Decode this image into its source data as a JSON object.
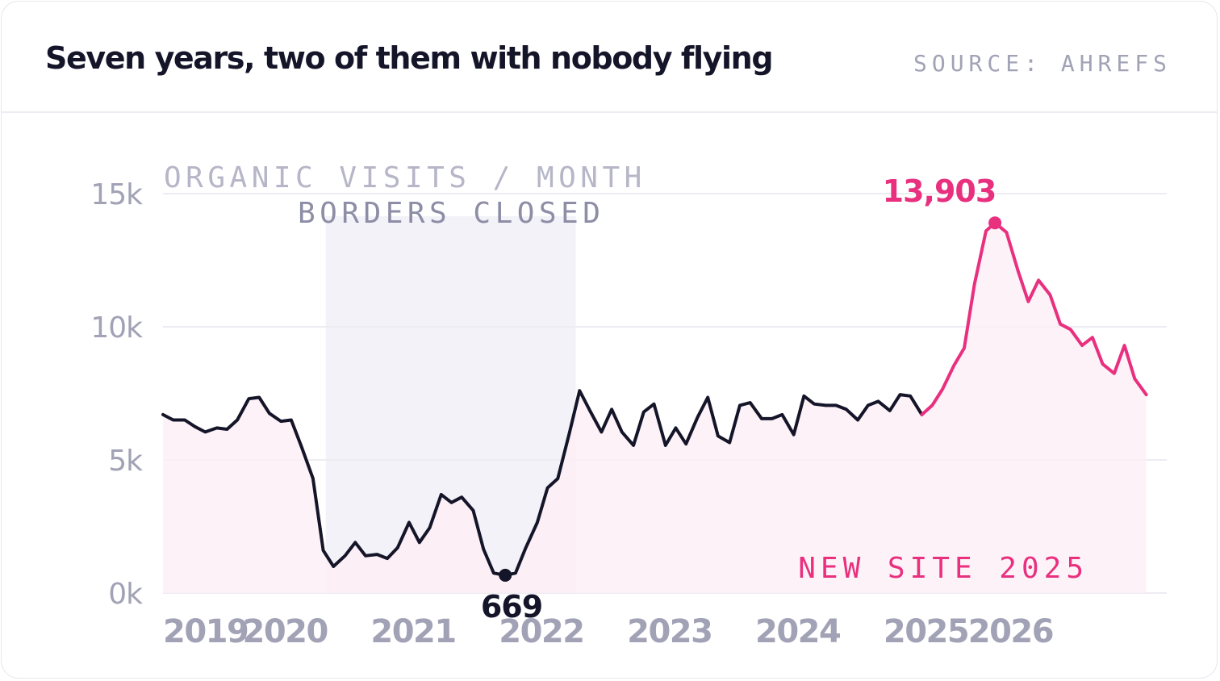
{
  "header": {
    "title": "Seven years, two of them with nobody flying",
    "source": "SOURCE: AHREFS"
  },
  "colors": {
    "text": "#15152a",
    "muted": "#a2a2b6",
    "accent": "#e8307f",
    "area_fill": "#fdf0f6",
    "band_fill": "#f3f2f8",
    "grid": "#ececf2"
  },
  "chart_data": {
    "type": "line",
    "ylabel": "ORGANIC VISITS / MONTH",
    "xlim": [
      2019.0,
      2026.83
    ],
    "ylim": [
      0,
      15000
    ],
    "yticks": [
      {
        "value": 0,
        "label": "0k"
      },
      {
        "value": 5000,
        "label": "5k"
      },
      {
        "value": 10000,
        "label": "10k"
      },
      {
        "value": 15000,
        "label": "15k"
      }
    ],
    "xticks": [
      {
        "value": 2019.0,
        "label": "2019"
      },
      {
        "value": 2019.62,
        "label": "2020"
      },
      {
        "value": 2020.62,
        "label": "2021"
      },
      {
        "value": 2021.62,
        "label": "2022"
      },
      {
        "value": 2022.62,
        "label": "2023"
      },
      {
        "value": 2023.62,
        "label": "2024"
      },
      {
        "value": 2024.62,
        "label": "2025"
      },
      {
        "value": 2025.28,
        "label": "2026"
      }
    ],
    "grid": true,
    "shaded_band": {
      "label": "BORDERS CLOSED",
      "x_start": 2020.27,
      "x_end": 2022.22
    },
    "series": [
      {
        "color": "#15152a",
        "points": [
          [
            2019.0,
            6700
          ],
          [
            2019.08,
            6500
          ],
          [
            2019.17,
            6500
          ],
          [
            2019.25,
            6250
          ],
          [
            2019.33,
            6050
          ],
          [
            2019.42,
            6200
          ],
          [
            2019.5,
            6150
          ],
          [
            2019.58,
            6500
          ],
          [
            2019.67,
            7300
          ],
          [
            2019.75,
            7350
          ],
          [
            2019.83,
            6750
          ],
          [
            2019.92,
            6450
          ],
          [
            2020.0,
            6500
          ],
          [
            2020.08,
            5500
          ],
          [
            2020.17,
            4300
          ],
          [
            2020.25,
            1600
          ],
          [
            2020.33,
            1000
          ],
          [
            2020.42,
            1400
          ],
          [
            2020.5,
            1900
          ],
          [
            2020.58,
            1400
          ],
          [
            2020.67,
            1450
          ],
          [
            2020.75,
            1300
          ],
          [
            2020.83,
            1700
          ],
          [
            2020.92,
            2650
          ],
          [
            2021.0,
            1900
          ],
          [
            2021.08,
            2450
          ],
          [
            2021.17,
            3700
          ],
          [
            2021.25,
            3400
          ],
          [
            2021.33,
            3600
          ],
          [
            2021.42,
            3100
          ],
          [
            2021.5,
            1650
          ],
          [
            2021.58,
            750
          ],
          [
            2021.67,
            669
          ],
          [
            2021.75,
            750
          ],
          [
            2021.83,
            1700
          ],
          [
            2021.92,
            2650
          ],
          [
            2022.0,
            3950
          ],
          [
            2022.08,
            4300
          ],
          [
            2022.17,
            6000
          ],
          [
            2022.25,
            7600
          ],
          [
            2022.33,
            6850
          ],
          [
            2022.42,
            6050
          ],
          [
            2022.5,
            6900
          ],
          [
            2022.58,
            6050
          ],
          [
            2022.67,
            5550
          ],
          [
            2022.75,
            6800
          ],
          [
            2022.83,
            7100
          ],
          [
            2022.92,
            5550
          ],
          [
            2023.0,
            6200
          ],
          [
            2023.08,
            5600
          ],
          [
            2023.17,
            6600
          ],
          [
            2023.25,
            7350
          ],
          [
            2023.33,
            5900
          ],
          [
            2023.42,
            5650
          ],
          [
            2023.5,
            7050
          ],
          [
            2023.58,
            7150
          ],
          [
            2023.67,
            6550
          ],
          [
            2023.75,
            6550
          ],
          [
            2023.83,
            6700
          ],
          [
            2023.92,
            5950
          ],
          [
            2024.0,
            7400
          ],
          [
            2024.08,
            7100
          ],
          [
            2024.17,
            7050
          ],
          [
            2024.25,
            7050
          ],
          [
            2024.33,
            6900
          ],
          [
            2024.42,
            6500
          ],
          [
            2024.5,
            7050
          ],
          [
            2024.58,
            7200
          ],
          [
            2024.67,
            6850
          ],
          [
            2024.75,
            7450
          ],
          [
            2024.83,
            7400
          ],
          [
            2024.92,
            6700
          ]
        ]
      },
      {
        "name": "NEW SITE 2025",
        "color": "#e8307f",
        "points": [
          [
            2024.92,
            6700
          ],
          [
            2025.0,
            7050
          ],
          [
            2025.08,
            7650
          ],
          [
            2025.17,
            8550
          ],
          [
            2025.25,
            9200
          ],
          [
            2025.33,
            11600
          ],
          [
            2025.42,
            13600
          ],
          [
            2025.49,
            13903
          ],
          [
            2025.58,
            13550
          ],
          [
            2025.67,
            12100
          ],
          [
            2025.75,
            10950
          ],
          [
            2025.83,
            11750
          ],
          [
            2025.92,
            11200
          ],
          [
            2026.0,
            10100
          ],
          [
            2026.08,
            9900
          ],
          [
            2026.17,
            9300
          ],
          [
            2026.25,
            9600
          ],
          [
            2026.33,
            8600
          ],
          [
            2026.42,
            8250
          ],
          [
            2026.5,
            9300
          ],
          [
            2026.58,
            8050
          ],
          [
            2026.67,
            7450
          ]
        ]
      }
    ],
    "annotations": [
      {
        "text": "13,903",
        "x": 2025.49,
        "y": 13903,
        "color": "#e8307f"
      },
      {
        "text": "669",
        "x": 2021.67,
        "y": 669,
        "color": "#15152a"
      }
    ]
  }
}
